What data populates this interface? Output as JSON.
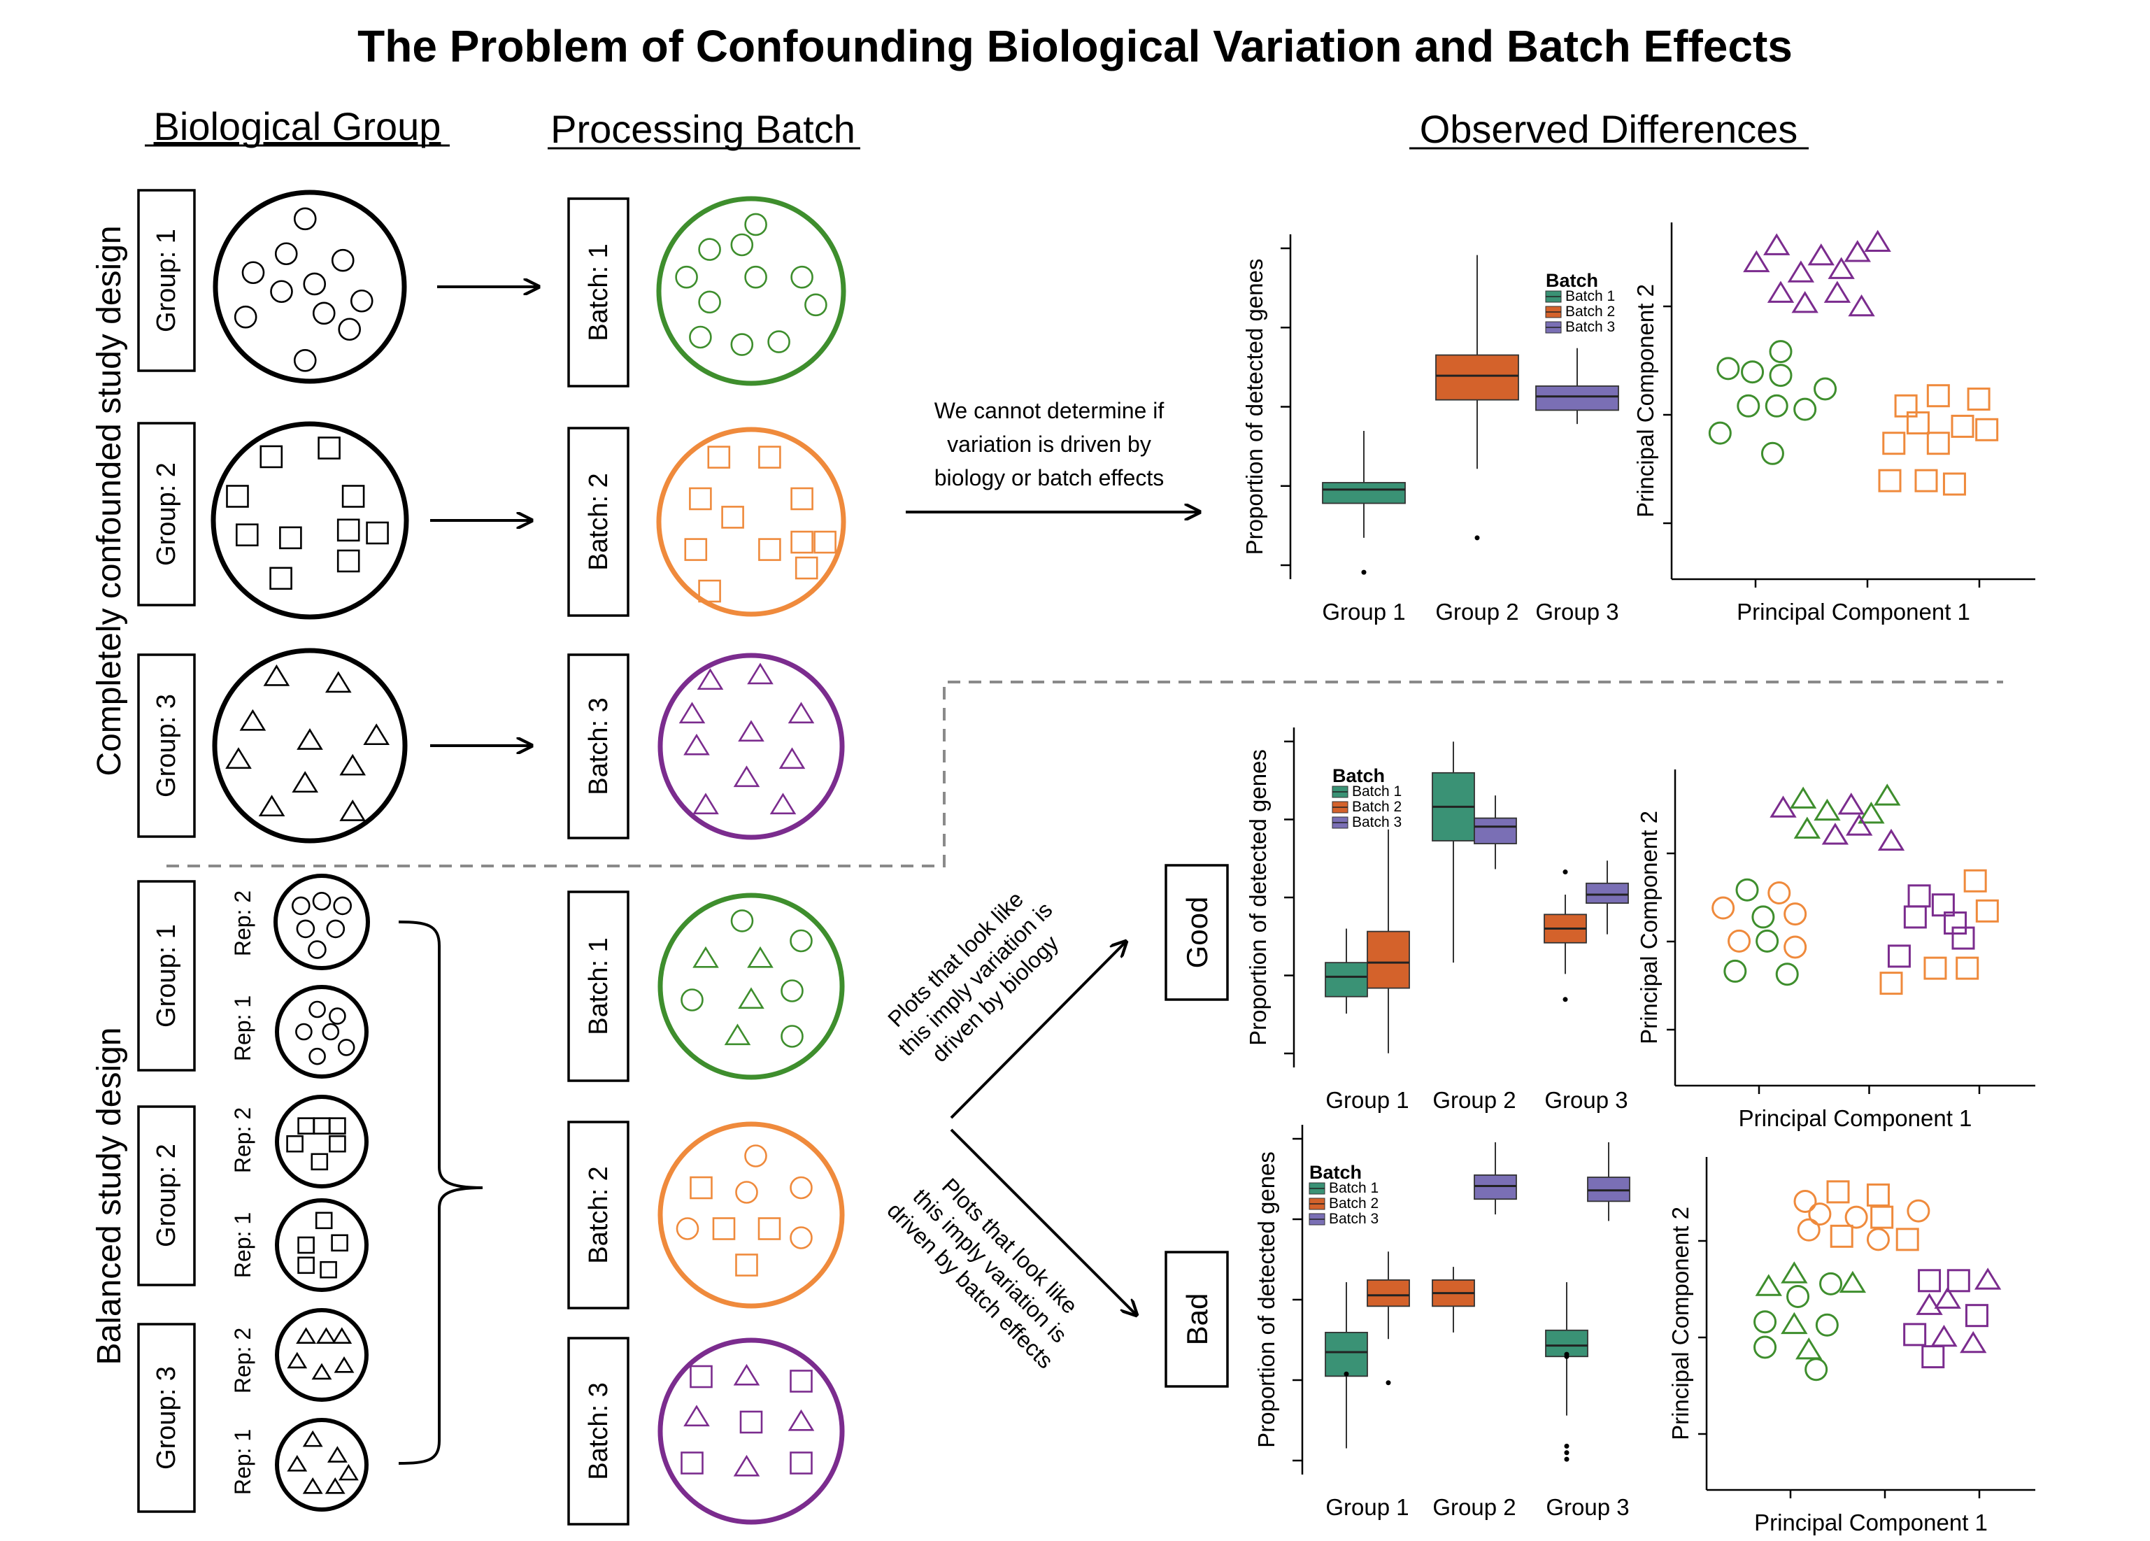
{
  "title": "The Problem of Confounding Biological Variation and Batch Effects",
  "headers": {
    "biological_group": "Biological Group",
    "processing_batch": "Processing Batch",
    "observed_differences": "Observed Differences"
  },
  "sections": {
    "confounded": "Completely confounded study design",
    "balanced": "Balanced study design"
  },
  "group_labels": [
    "Group: 1",
    "Group: 2",
    "Group: 3"
  ],
  "batch_labels": [
    "Batch: 1",
    "Batch: 2",
    "Batch: 3"
  ],
  "rep_labels": [
    "Rep: 2",
    "Rep: 1"
  ],
  "notes": {
    "cannot_determine": [
      "We cannot determine if",
      "variation is driven by",
      "biology or batch effects"
    ],
    "good_arrow": [
      "Plots that look like",
      "this imply variation is",
      "driven by biology"
    ],
    "bad_arrow": [
      "Plots that look like",
      "this imply variation is",
      "driven by batch effects"
    ]
  },
  "verdicts": {
    "good": "Good",
    "bad": "Bad"
  },
  "colors": {
    "green": "#3e8e2d",
    "orange": "#ef8a3c",
    "purple": "#7b2c8e",
    "box_green": "#3a9275",
    "box_orange": "#d4622b",
    "box_purple": "#7a6fb5"
  },
  "icons": {
    "circle": "circle-marker-icon",
    "square": "square-marker-icon",
    "triangle": "triangle-marker-icon"
  },
  "chart_data": [
    {
      "type": "box",
      "id": "confounded-box",
      "ylabel": "Proportion of detected genes",
      "categories": [
        "Group 1",
        "Group 2",
        "Group 3"
      ],
      "legend": {
        "title": "Batch",
        "entries": [
          "Batch 1",
          "Batch 2",
          "Batch 3"
        ],
        "placement": "top-right"
      },
      "boxes": [
        {
          "category": "Group 1",
          "batch": "Batch 1",
          "min": 0.42,
          "q1": 0.52,
          "median": 0.56,
          "q3": 0.58,
          "max": 0.73,
          "outliers": [
            0.32
          ]
        },
        {
          "category": "Group 2",
          "batch": "Batch 2",
          "min": 0.62,
          "q1": 0.82,
          "median": 0.89,
          "q3": 0.95,
          "max": 1.24,
          "outliers": [
            0.42
          ]
        },
        {
          "category": "Group 3",
          "batch": "Batch 3",
          "min": 0.75,
          "q1": 0.79,
          "median": 0.83,
          "q3": 0.86,
          "max": 0.97,
          "outliers": []
        }
      ],
      "ylim": [
        0.3,
        1.3
      ]
    },
    {
      "type": "scatter",
      "id": "confounded-pca",
      "xlabel": "Principal Component 1",
      "ylabel": "Principal Component 2",
      "points": [
        {
          "x": 2.1,
          "y": 9.3,
          "shape": "triangle",
          "color": "purple"
        },
        {
          "x": 2.6,
          "y": 9.8,
          "shape": "triangle",
          "color": "purple"
        },
        {
          "x": 3.2,
          "y": 9.0,
          "shape": "triangle",
          "color": "purple"
        },
        {
          "x": 3.7,
          "y": 9.5,
          "shape": "triangle",
          "color": "purple"
        },
        {
          "x": 4.2,
          "y": 9.1,
          "shape": "triangle",
          "color": "purple"
        },
        {
          "x": 4.6,
          "y": 9.6,
          "shape": "triangle",
          "color": "purple"
        },
        {
          "x": 5.1,
          "y": 9.9,
          "shape": "triangle",
          "color": "purple"
        },
        {
          "x": 2.7,
          "y": 8.4,
          "shape": "triangle",
          "color": "purple"
        },
        {
          "x": 3.3,
          "y": 8.1,
          "shape": "triangle",
          "color": "purple"
        },
        {
          "x": 4.1,
          "y": 8.4,
          "shape": "triangle",
          "color": "purple"
        },
        {
          "x": 4.7,
          "y": 8.0,
          "shape": "triangle",
          "color": "purple"
        },
        {
          "x": 1.4,
          "y": 6.2,
          "shape": "circle",
          "color": "green"
        },
        {
          "x": 2.0,
          "y": 6.1,
          "shape": "circle",
          "color": "green"
        },
        {
          "x": 2.7,
          "y": 6.7,
          "shape": "circle",
          "color": "green"
        },
        {
          "x": 2.7,
          "y": 6.0,
          "shape": "circle",
          "color": "green"
        },
        {
          "x": 1.9,
          "y": 5.1,
          "shape": "circle",
          "color": "green"
        },
        {
          "x": 2.6,
          "y": 5.1,
          "shape": "circle",
          "color": "green"
        },
        {
          "x": 3.3,
          "y": 5.0,
          "shape": "circle",
          "color": "green"
        },
        {
          "x": 3.8,
          "y": 5.6,
          "shape": "circle",
          "color": "green"
        },
        {
          "x": 1.2,
          "y": 4.3,
          "shape": "circle",
          "color": "green"
        },
        {
          "x": 2.5,
          "y": 3.7,
          "shape": "circle",
          "color": "green"
        },
        {
          "x": 5.8,
          "y": 5.1,
          "shape": "square",
          "color": "orange"
        },
        {
          "x": 6.6,
          "y": 5.4,
          "shape": "square",
          "color": "orange"
        },
        {
          "x": 7.6,
          "y": 5.3,
          "shape": "square",
          "color": "orange"
        },
        {
          "x": 5.5,
          "y": 4.0,
          "shape": "square",
          "color": "orange"
        },
        {
          "x": 6.1,
          "y": 4.6,
          "shape": "square",
          "color": "orange"
        },
        {
          "x": 6.6,
          "y": 4.0,
          "shape": "square",
          "color": "orange"
        },
        {
          "x": 7.2,
          "y": 4.5,
          "shape": "square",
          "color": "orange"
        },
        {
          "x": 7.8,
          "y": 4.4,
          "shape": "square",
          "color": "orange"
        },
        {
          "x": 5.4,
          "y": 2.9,
          "shape": "square",
          "color": "orange"
        },
        {
          "x": 6.3,
          "y": 2.9,
          "shape": "square",
          "color": "orange"
        },
        {
          "x": 7.0,
          "y": 2.8,
          "shape": "square",
          "color": "orange"
        }
      ]
    },
    {
      "type": "box",
      "id": "good-box",
      "ylabel": "Proportion of detected genes",
      "categories": [
        "Group 1",
        "Group 2",
        "Group 3"
      ],
      "legend": {
        "title": "Batch",
        "entries": [
          "Batch 1",
          "Batch 2",
          "Batch 3"
        ],
        "placement": "top-left"
      },
      "boxes": [
        {
          "category": "Group 1",
          "batch": "Batch 1",
          "min": 0.44,
          "q1": 0.5,
          "median": 0.57,
          "q3": 0.62,
          "max": 0.74
        },
        {
          "category": "Group 1",
          "batch": "Batch 2",
          "min": 0.3,
          "q1": 0.53,
          "median": 0.62,
          "q3": 0.73,
          "max": 1.09
        },
        {
          "category": "Group 2",
          "batch": "Batch 1",
          "min": 0.62,
          "q1": 1.05,
          "median": 1.17,
          "q3": 1.29,
          "max": 1.4
        },
        {
          "category": "Group 2",
          "batch": "Batch 3",
          "min": 0.95,
          "q1": 1.04,
          "median": 1.1,
          "q3": 1.13,
          "max": 1.21
        },
        {
          "category": "Group 3",
          "batch": "Batch 2",
          "min": 0.58,
          "q1": 0.69,
          "median": 0.74,
          "q3": 0.79,
          "max": 0.86,
          "outliers": [
            0.49,
            0.94
          ]
        },
        {
          "category": "Group 3",
          "batch": "Batch 3",
          "min": 0.72,
          "q1": 0.83,
          "median": 0.86,
          "q3": 0.9,
          "max": 0.98
        }
      ],
      "ylim": [
        0.25,
        1.45
      ]
    },
    {
      "type": "scatter",
      "id": "good-pca",
      "xlabel": "Principal Component 1",
      "ylabel": "Principal Component 2",
      "points": [
        {
          "x": 2.7,
          "y": 9.2,
          "shape": "triangle",
          "color": "purple"
        },
        {
          "x": 3.2,
          "y": 9.5,
          "shape": "triangle",
          "color": "green"
        },
        {
          "x": 3.8,
          "y": 9.1,
          "shape": "triangle",
          "color": "green"
        },
        {
          "x": 4.4,
          "y": 9.3,
          "shape": "triangle",
          "color": "purple"
        },
        {
          "x": 4.9,
          "y": 9.0,
          "shape": "triangle",
          "color": "green"
        },
        {
          "x": 5.3,
          "y": 9.6,
          "shape": "triangle",
          "color": "green"
        },
        {
          "x": 3.3,
          "y": 8.5,
          "shape": "triangle",
          "color": "green"
        },
        {
          "x": 4.0,
          "y": 8.3,
          "shape": "triangle",
          "color": "purple"
        },
        {
          "x": 4.6,
          "y": 8.6,
          "shape": "triangle",
          "color": "purple"
        },
        {
          "x": 5.4,
          "y": 8.1,
          "shape": "triangle",
          "color": "purple"
        },
        {
          "x": 1.8,
          "y": 6.5,
          "shape": "circle",
          "color": "green"
        },
        {
          "x": 2.6,
          "y": 6.4,
          "shape": "circle",
          "color": "orange"
        },
        {
          "x": 1.2,
          "y": 5.9,
          "shape": "circle",
          "color": "orange"
        },
        {
          "x": 2.2,
          "y": 5.6,
          "shape": "circle",
          "color": "green"
        },
        {
          "x": 3.0,
          "y": 5.7,
          "shape": "circle",
          "color": "orange"
        },
        {
          "x": 1.6,
          "y": 4.8,
          "shape": "circle",
          "color": "orange"
        },
        {
          "x": 2.3,
          "y": 4.8,
          "shape": "circle",
          "color": "green"
        },
        {
          "x": 3.0,
          "y": 4.6,
          "shape": "circle",
          "color": "orange"
        },
        {
          "x": 1.5,
          "y": 3.8,
          "shape": "circle",
          "color": "green"
        },
        {
          "x": 2.8,
          "y": 3.7,
          "shape": "circle",
          "color": "green"
        },
        {
          "x": 6.1,
          "y": 6.3,
          "shape": "square",
          "color": "purple"
        },
        {
          "x": 7.5,
          "y": 6.8,
          "shape": "square",
          "color": "orange"
        },
        {
          "x": 6.7,
          "y": 6.0,
          "shape": "square",
          "color": "purple"
        },
        {
          "x": 7.8,
          "y": 5.8,
          "shape": "square",
          "color": "orange"
        },
        {
          "x": 6.0,
          "y": 5.6,
          "shape": "square",
          "color": "purple"
        },
        {
          "x": 7.0,
          "y": 5.4,
          "shape": "square",
          "color": "purple"
        },
        {
          "x": 7.2,
          "y": 4.9,
          "shape": "square",
          "color": "purple"
        },
        {
          "x": 5.6,
          "y": 4.3,
          "shape": "square",
          "color": "purple"
        },
        {
          "x": 6.5,
          "y": 3.9,
          "shape": "square",
          "color": "orange"
        },
        {
          "x": 7.3,
          "y": 3.9,
          "shape": "square",
          "color": "orange"
        },
        {
          "x": 5.4,
          "y": 3.4,
          "shape": "square",
          "color": "orange"
        }
      ]
    },
    {
      "type": "box",
      "id": "bad-box",
      "ylabel": "Proportion of detected genes",
      "categories": [
        "Group 1",
        "Group 2",
        "Group 3"
      ],
      "legend": {
        "title": "Batch",
        "entries": [
          "Batch 1",
          "Batch 2",
          "Batch 3"
        ],
        "placement": "top-left"
      },
      "boxes": [
        {
          "category": "Group 1",
          "batch": "Batch 1",
          "min": 0.32,
          "q1": 0.65,
          "median": 0.76,
          "q3": 0.85,
          "max": 1.08,
          "outliers": [
            0.66
          ]
        },
        {
          "category": "Group 1",
          "batch": "Batch 2",
          "min": 0.82,
          "q1": 0.97,
          "median": 1.02,
          "q3": 1.09,
          "max": 1.22,
          "outliers": [
            0.62
          ]
        },
        {
          "category": "Group 2",
          "batch": "Batch 2",
          "min": 0.85,
          "q1": 0.97,
          "median": 1.03,
          "q3": 1.09,
          "max": 1.15
        },
        {
          "category": "Group 2",
          "batch": "Batch 3",
          "min": 1.39,
          "q1": 1.46,
          "median": 1.52,
          "q3": 1.57,
          "max": 1.72
        },
        {
          "category": "Group 3",
          "batch": "Batch 1",
          "min": 0.47,
          "q1": 0.74,
          "median": 0.79,
          "q3": 0.86,
          "max": 1.08,
          "outliers": [
            0.27,
            0.3,
            0.33,
            0.74,
            0.75
          ]
        },
        {
          "category": "Group 3",
          "batch": "Batch 3",
          "min": 1.36,
          "q1": 1.45,
          "median": 1.5,
          "q3": 1.56,
          "max": 1.72
        }
      ],
      "ylim": [
        0.2,
        1.8
      ]
    },
    {
      "type": "scatter",
      "id": "bad-pca",
      "xlabel": "Principal Component 1",
      "ylabel": "Principal Component 2",
      "points": [
        {
          "x": 2.7,
          "y": 9.1,
          "shape": "circle",
          "color": "orange"
        },
        {
          "x": 3.6,
          "y": 9.4,
          "shape": "square",
          "color": "orange"
        },
        {
          "x": 4.7,
          "y": 9.3,
          "shape": "square",
          "color": "orange"
        },
        {
          "x": 5.8,
          "y": 8.8,
          "shape": "circle",
          "color": "orange"
        },
        {
          "x": 3.1,
          "y": 8.7,
          "shape": "circle",
          "color": "orange"
        },
        {
          "x": 4.1,
          "y": 8.6,
          "shape": "circle",
          "color": "orange"
        },
        {
          "x": 4.8,
          "y": 8.6,
          "shape": "square",
          "color": "orange"
        },
        {
          "x": 2.8,
          "y": 8.2,
          "shape": "circle",
          "color": "orange"
        },
        {
          "x": 3.7,
          "y": 8.0,
          "shape": "square",
          "color": "orange"
        },
        {
          "x": 4.7,
          "y": 7.9,
          "shape": "circle",
          "color": "orange"
        },
        {
          "x": 5.5,
          "y": 7.9,
          "shape": "square",
          "color": "orange"
        },
        {
          "x": 1.7,
          "y": 6.4,
          "shape": "triangle",
          "color": "green"
        },
        {
          "x": 2.4,
          "y": 6.8,
          "shape": "triangle",
          "color": "green"
        },
        {
          "x": 2.5,
          "y": 6.1,
          "shape": "circle",
          "color": "green"
        },
        {
          "x": 3.4,
          "y": 6.5,
          "shape": "circle",
          "color": "green"
        },
        {
          "x": 4.0,
          "y": 6.5,
          "shape": "triangle",
          "color": "green"
        },
        {
          "x": 1.6,
          "y": 5.3,
          "shape": "circle",
          "color": "green"
        },
        {
          "x": 2.4,
          "y": 5.2,
          "shape": "triangle",
          "color": "green"
        },
        {
          "x": 3.3,
          "y": 5.2,
          "shape": "circle",
          "color": "green"
        },
        {
          "x": 1.6,
          "y": 4.5,
          "shape": "circle",
          "color": "green"
        },
        {
          "x": 2.8,
          "y": 4.4,
          "shape": "triangle",
          "color": "green"
        },
        {
          "x": 3.0,
          "y": 3.8,
          "shape": "circle",
          "color": "green"
        },
        {
          "x": 6.1,
          "y": 6.6,
          "shape": "square",
          "color": "purple"
        },
        {
          "x": 6.9,
          "y": 6.6,
          "shape": "square",
          "color": "purple"
        },
        {
          "x": 7.7,
          "y": 6.6,
          "shape": "triangle",
          "color": "purple"
        },
        {
          "x": 6.6,
          "y": 6.0,
          "shape": "triangle",
          "color": "purple"
        },
        {
          "x": 6.1,
          "y": 5.8,
          "shape": "triangle",
          "color": "purple"
        },
        {
          "x": 7.4,
          "y": 5.5,
          "shape": "square",
          "color": "purple"
        },
        {
          "x": 5.7,
          "y": 4.9,
          "shape": "square",
          "color": "purple"
        },
        {
          "x": 6.5,
          "y": 4.8,
          "shape": "triangle",
          "color": "purple"
        },
        {
          "x": 7.3,
          "y": 4.6,
          "shape": "triangle",
          "color": "purple"
        },
        {
          "x": 6.2,
          "y": 4.2,
          "shape": "square",
          "color": "purple"
        }
      ]
    }
  ]
}
